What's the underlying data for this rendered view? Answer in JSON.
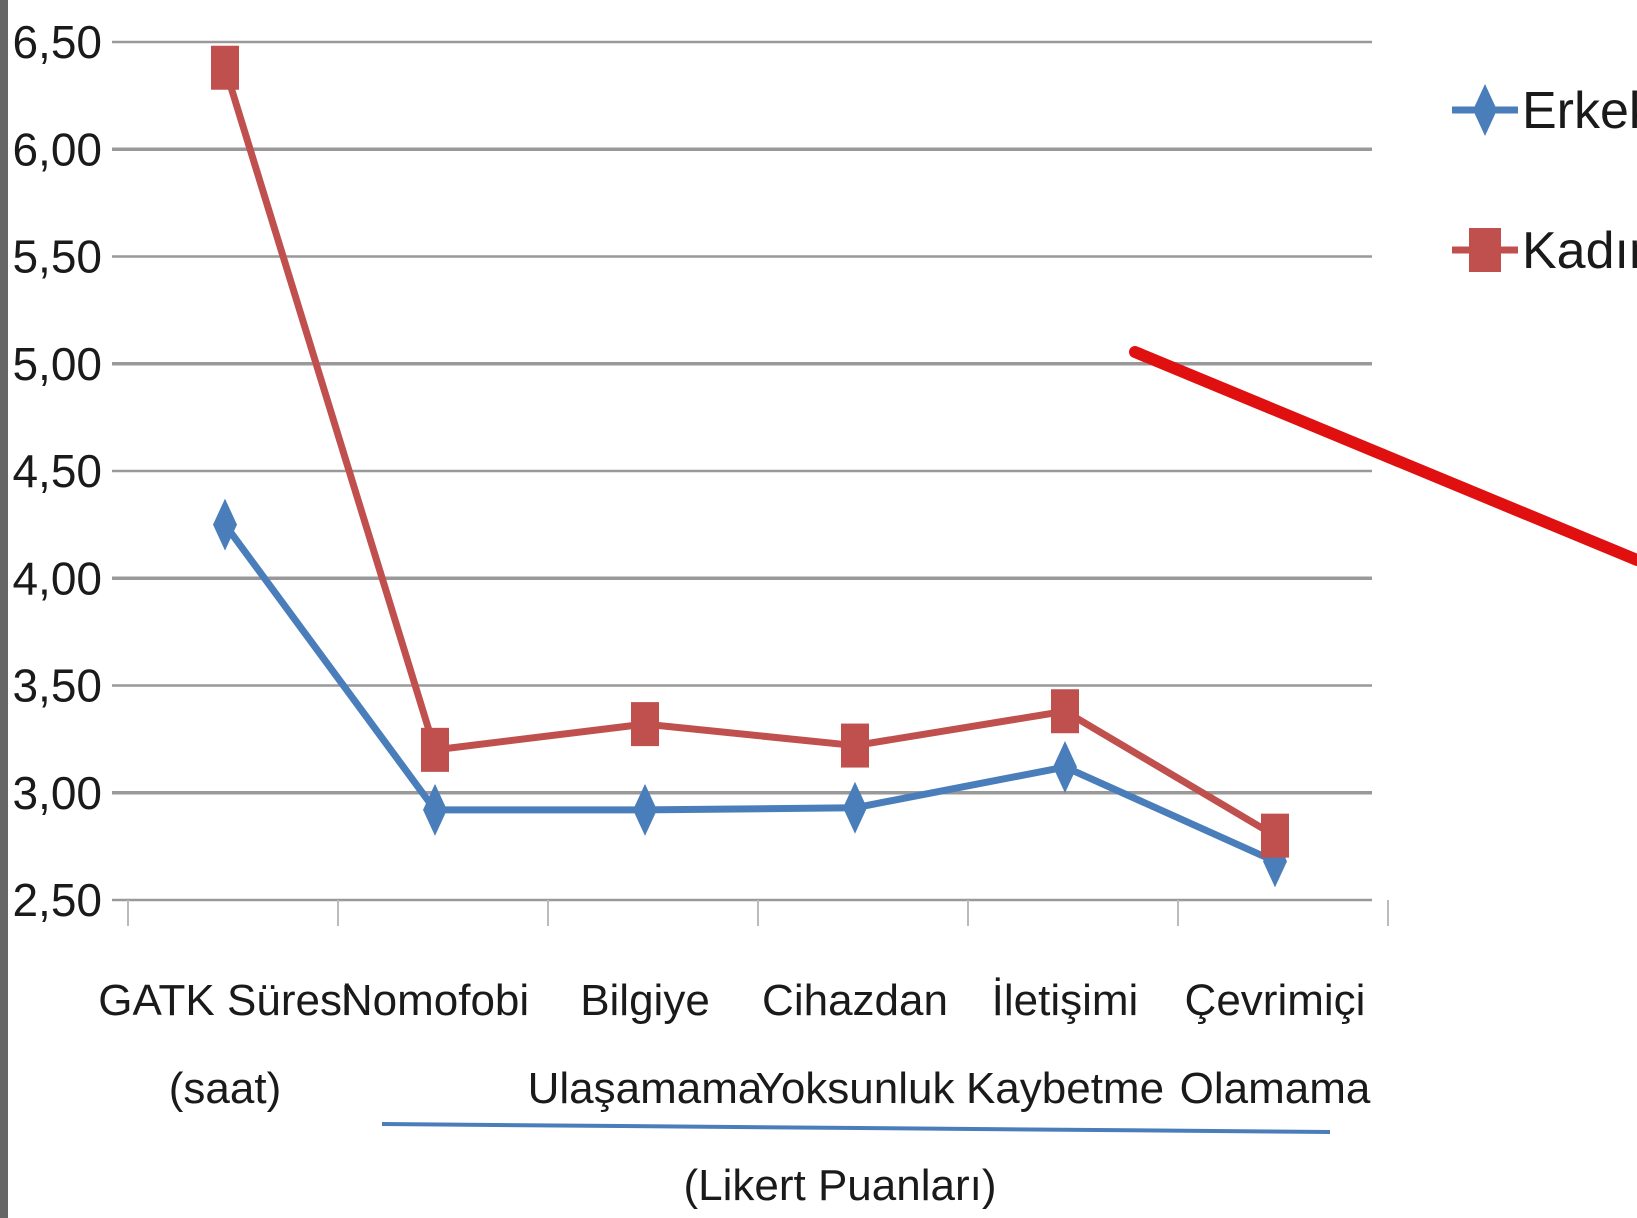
{
  "chart_data": {
    "type": "line",
    "title": "",
    "xlabel": "",
    "ylabel": "",
    "ylim": [
      2.5,
      6.5
    ],
    "yticks": [
      "2,50",
      "3,00",
      "3,50",
      "4,00",
      "4,50",
      "5,00",
      "5,50",
      "6,00",
      "6,50"
    ],
    "grid": true,
    "legend_position": "top-right",
    "categories": [
      [
        "GATK Süresi",
        "(saat)"
      ],
      [
        "Nomofobi"
      ],
      [
        "Bilgiye",
        "Ulaşamama"
      ],
      [
        "Cihazdan",
        "Yoksunluk"
      ],
      [
        "İletişimi",
        "Kaybetme"
      ],
      [
        "Çevrimiçi",
        "Olamama"
      ]
    ],
    "annotation": "(Likert Puanları)",
    "series": [
      {
        "name": "Erkek",
        "color": "#4a7ebb",
        "marker": "diamond",
        "values": [
          4.25,
          2.92,
          2.92,
          2.93,
          3.12,
          2.68
        ]
      },
      {
        "name": "Kadın",
        "color": "#c0504d",
        "marker": "square",
        "values": [
          6.38,
          3.2,
          3.32,
          3.22,
          3.38,
          2.8
        ]
      }
    ],
    "colors": {
      "grid": "#999999",
      "bracket": "#4a7ebb",
      "arrow": "#e01010"
    }
  }
}
